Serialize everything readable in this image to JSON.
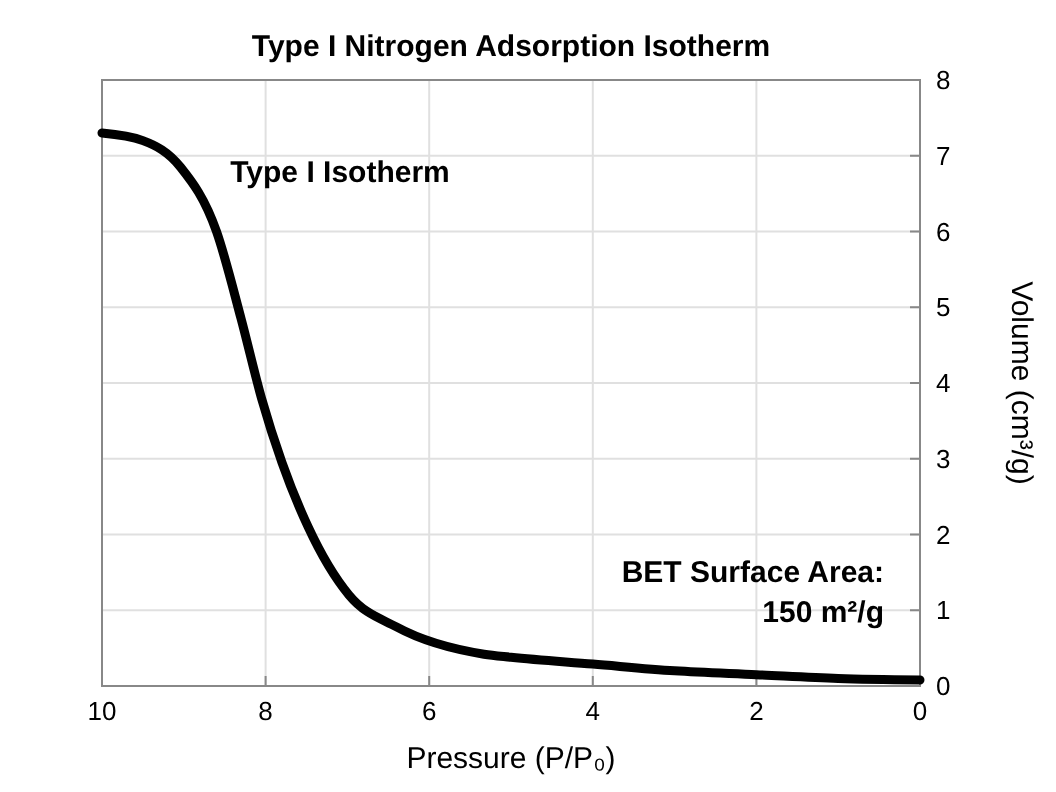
{
  "chart_data": {
    "type": "line",
    "title": "Type I Nitrogen Adsorption Isotherm",
    "xlabel": "Pressure (P/P₀)",
    "ylabel": "Volume (cm³/g)",
    "x": [
      10,
      9.5,
      9.04,
      8.6,
      8.3,
      8.05,
      7.8,
      7.48,
      6.98,
      6.4,
      5.33,
      5,
      4,
      3,
      2,
      1,
      0
    ],
    "series": [
      {
        "color": "#000000",
        "values": [
          7.3,
          7.2,
          6.85,
          6.0,
          4.85,
          3.8,
          2.95,
          2.1,
          1.2,
          0.78,
          0.42,
          0.38,
          0.29,
          0.2,
          0.15,
          0.1,
          0.08
        ]
      }
    ],
    "xlim": [
      10,
      0
    ],
    "ylim": [
      0,
      8
    ],
    "xticks": [
      10,
      8,
      6,
      4,
      2,
      0
    ],
    "yticks": [
      0,
      1,
      2,
      3,
      4,
      5,
      6,
      7,
      8
    ],
    "grid": true,
    "marker": "none",
    "line_style": "solid",
    "annotations": [
      "Type I Isotherm",
      "BET Surface Area:\n150 m²/g"
    ]
  }
}
